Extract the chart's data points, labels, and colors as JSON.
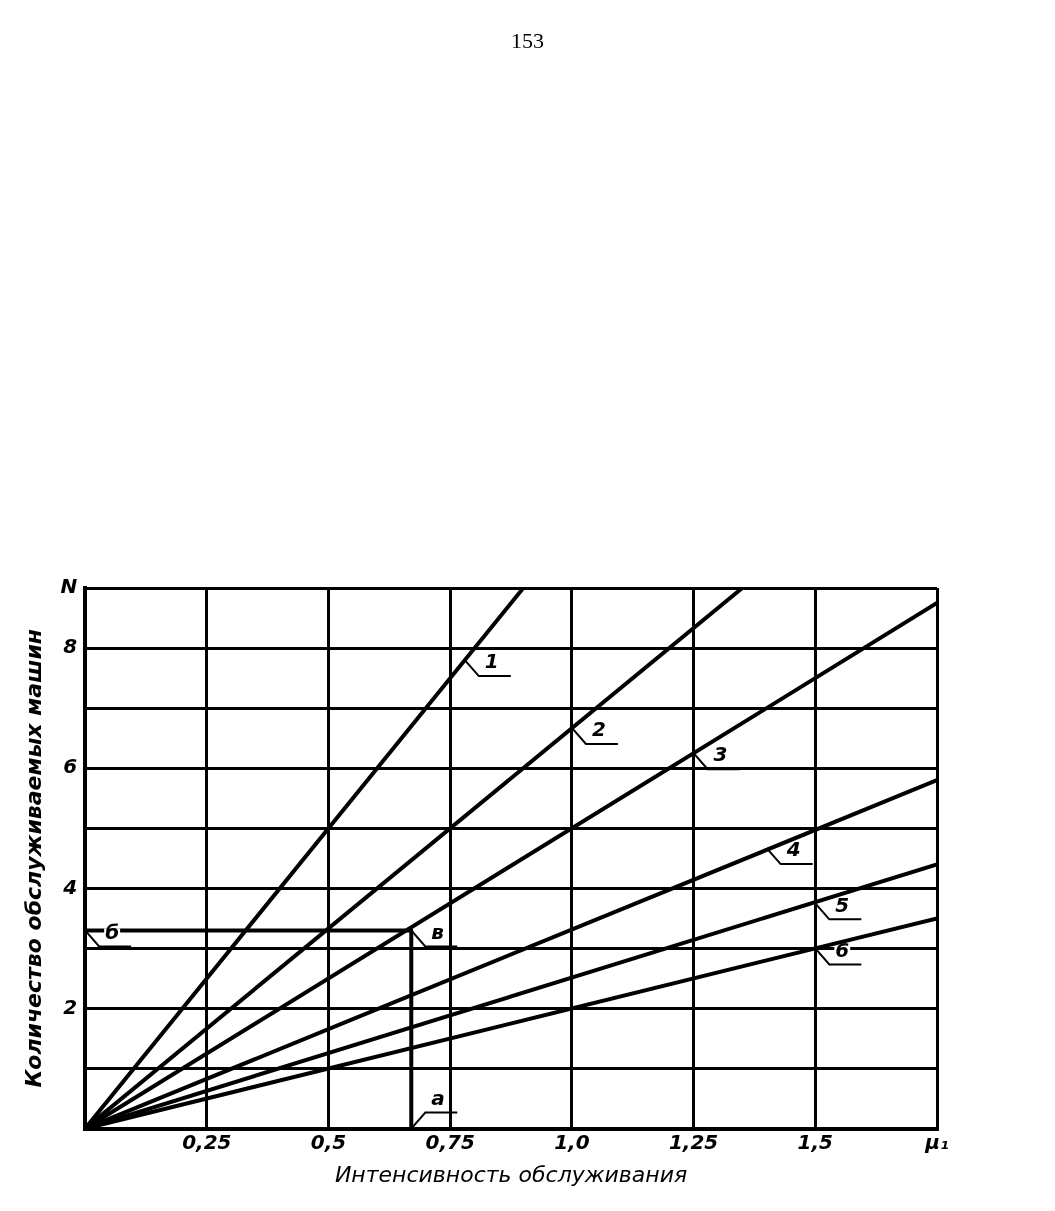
{
  "chart_data": {
    "type": "line",
    "ylabel": "Количество обслуживаемых машин",
    "xlabel": "Интенсивность обслуживания",
    "xlim": [
      0,
      1.75
    ],
    "ylim": [
      0,
      9
    ],
    "xticks": [
      {
        "value": 0,
        "label": null
      },
      {
        "value": 0.25,
        "label": "0,25"
      },
      {
        "value": 0.5,
        "label": "0,5"
      },
      {
        "value": 0.75,
        "label": "0,75"
      },
      {
        "value": 1,
        "label": "1,0"
      },
      {
        "value": 1.25,
        "label": "1,25"
      },
      {
        "value": 1.5,
        "label": "1,5"
      },
      {
        "value": 1.75,
        "label": "μ₁"
      }
    ],
    "yticks": [
      {
        "value": 0,
        "label": null
      },
      {
        "value": 1,
        "label": null
      },
      2,
      {
        "value": 3,
        "label": null
      },
      4,
      {
        "value": 5,
        "label": null
      },
      6,
      {
        "value": 7,
        "label": null
      },
      8,
      {
        "value": 9,
        "label": "N"
      }
    ],
    "grid": true,
    "legend": false,
    "marker": "none",
    "line_style": "solid",
    "series": [
      {
        "color": "#000000",
        "x": [
          0,
          0.9
        ],
        "values": [
          0,
          9
        ]
      },
      {
        "color": "#000000",
        "x": [
          0,
          1.35
        ],
        "values": [
          0,
          9
        ]
      },
      {
        "color": "#000000",
        "x": [
          0,
          1.75
        ],
        "values": [
          0,
          8.75
        ]
      },
      {
        "color": "#000000",
        "x": [
          0,
          1.75
        ],
        "values": [
          0,
          5.8
        ]
      },
      {
        "color": "#000000",
        "x": [
          0,
          1.75
        ],
        "values": [
          0,
          4.4
        ]
      },
      {
        "color": "#000000",
        "x": [
          0,
          1.75
        ],
        "values": [
          0,
          3.5
        ]
      },
      {
        "color": "#000000",
        "x": [
          0,
          0.67,
          0.67
        ],
        "values": [
          3.3,
          3.3,
          0
        ]
      }
    ],
    "annotations": [
      "153",
      {
        "text": "1",
        "x": 0.78,
        "y": 7.8
      },
      {
        "text": "2",
        "x": 1.0,
        "y": 6.67
      },
      {
        "text": "3",
        "x": 1.25,
        "y": 6.25
      },
      {
        "text": "4",
        "x": 1.4,
        "y": 4.67
      },
      {
        "text": "5",
        "x": 1.5,
        "y": 3.75
      },
      {
        "text": "6",
        "x": 1.5,
        "y": 3.0
      },
      {
        "text": "а",
        "x": 0.67,
        "y": 0
      },
      {
        "text": "в",
        "x": 0.67,
        "y": 3.3
      },
      {
        "text": "б",
        "x": 0,
        "y": 3.3
      }
    ]
  }
}
